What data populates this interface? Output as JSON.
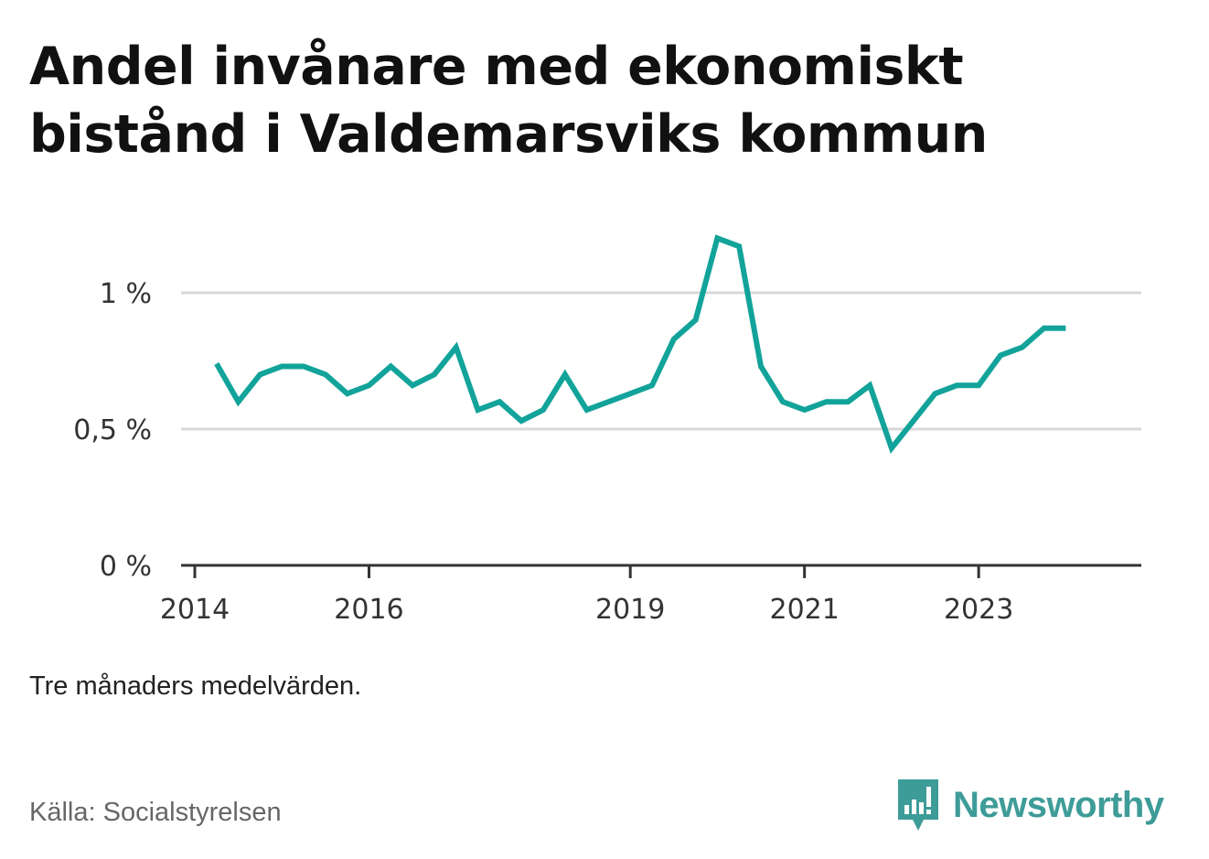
{
  "title": "Andel invånare med ekonomiskt bistånd i Valdemarsviks kommun",
  "note": "Tre månaders medelvärden.",
  "source": "Källa: Socialstyrelsen",
  "brand": {
    "name": "Newsworthy",
    "icon": "bar-chart-speech-bubble-icon"
  },
  "colors": {
    "line": "#12a39a",
    "grid": "#d9d9d9",
    "axis": "#333333",
    "brand": "#3e9c98"
  },
  "chart_data": {
    "type": "line",
    "title": "Andel invånare med ekonomiskt bistånd i Valdemarsviks kommun",
    "xlabel": "",
    "ylabel": "",
    "ylim": [
      0,
      1.0
    ],
    "yticks": [
      {
        "value": 0,
        "label": "0 %"
      },
      {
        "value": 0.5,
        "label": "0,5 %"
      },
      {
        "value": 1.0,
        "label": "1 %"
      }
    ],
    "xlim": [
      "2014-01",
      "2024-07"
    ],
    "xticks": [
      {
        "value": "2014-01",
        "label": "2014"
      },
      {
        "value": "2016-01",
        "label": "2016"
      },
      {
        "value": "2019-01",
        "label": "2019"
      },
      {
        "value": "2021-01",
        "label": "2021"
      },
      {
        "value": "2023-01",
        "label": "2023"
      }
    ],
    "grid": true,
    "series": [
      {
        "x": [
          "2014-04",
          "2014-07",
          "2014-10",
          "2015-01",
          "2015-04",
          "2015-07",
          "2015-10",
          "2016-01",
          "2016-04",
          "2016-07",
          "2016-10",
          "2017-01",
          "2017-04",
          "2017-07",
          "2017-10",
          "2018-01",
          "2018-04",
          "2018-07",
          "2018-10",
          "2019-01",
          "2019-04",
          "2019-07",
          "2019-10",
          "2020-01",
          "2020-04",
          "2020-07",
          "2020-10",
          "2021-01",
          "2021-04",
          "2021-07",
          "2021-10",
          "2022-01",
          "2022-04",
          "2022-07",
          "2022-10",
          "2023-01",
          "2023-04",
          "2023-07",
          "2023-10",
          "2024-01"
        ],
        "values": [
          0.74,
          0.6,
          0.7,
          0.73,
          0.73,
          0.7,
          0.63,
          0.66,
          0.73,
          0.66,
          0.7,
          0.8,
          0.57,
          0.6,
          0.53,
          0.57,
          0.7,
          0.57,
          0.6,
          0.63,
          0.66,
          0.83,
          0.9,
          1.2,
          1.17,
          0.73,
          0.6,
          0.57,
          0.6,
          0.6,
          0.66,
          0.43,
          0.53,
          0.63,
          0.66,
          0.66,
          0.77,
          0.8,
          0.87,
          0.87
        ]
      }
    ]
  }
}
